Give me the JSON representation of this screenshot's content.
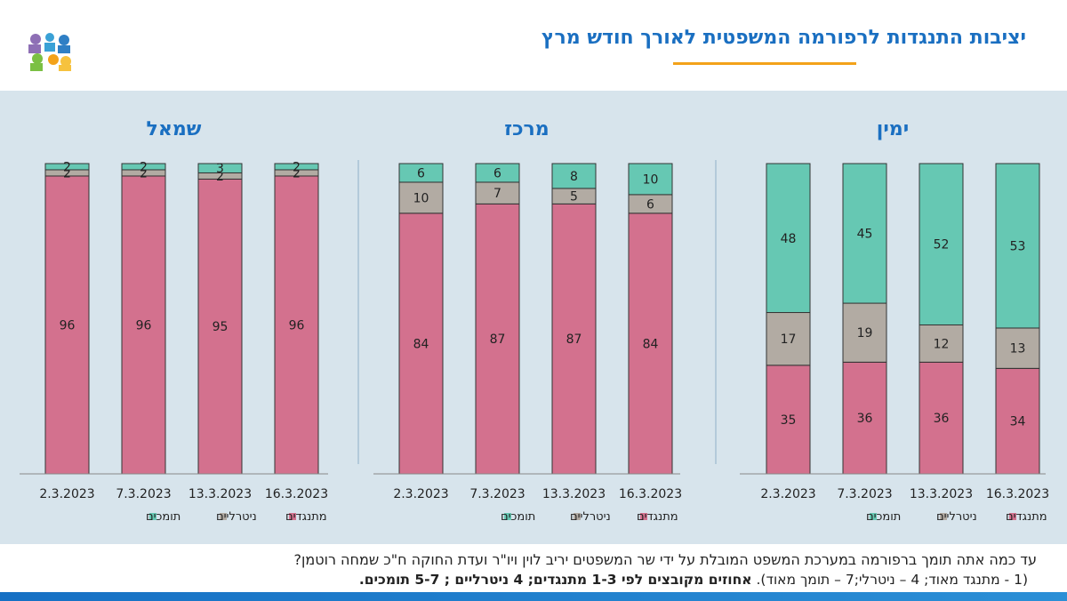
{
  "header": {
    "title": "יציבות התנגדות לרפורמה המשפטית לאורך חודש מרץ",
    "logo": "colored-figures-logo"
  },
  "colors": {
    "opposed": "#d3718e",
    "neutral": "#b2aba3",
    "support": "#66c8b3",
    "title": "#1a6fc1",
    "accent": "#f3a21a",
    "panel": "#d7e4ec"
  },
  "chart_data": [
    {
      "type": "bar",
      "stacked": true,
      "title": "ימין",
      "categories": [
        "2.3.2023",
        "7.3.2023",
        "13.3.2023",
        "16.3.2023"
      ],
      "series": [
        {
          "name": "מתנגדים",
          "values": [
            35,
            36,
            36,
            34
          ]
        },
        {
          "name": "ניטרליים",
          "values": [
            17,
            19,
            12,
            13
          ]
        },
        {
          "name": "תומכים",
          "values": [
            48,
            45,
            52,
            53
          ]
        }
      ],
      "ylim": [
        0,
        100
      ],
      "legend": "bottom"
    },
    {
      "type": "bar",
      "stacked": true,
      "title": "מרכז",
      "categories": [
        "2.3.2023",
        "7.3.2023",
        "13.3.2023",
        "16.3.2023"
      ],
      "series": [
        {
          "name": "מתנגדים",
          "values": [
            84,
            87,
            87,
            84
          ]
        },
        {
          "name": "ניטרליים",
          "values": [
            10,
            7,
            5,
            6
          ]
        },
        {
          "name": "תומכים",
          "values": [
            6,
            6,
            8,
            10
          ]
        }
      ],
      "ylim": [
        0,
        100
      ],
      "legend": "bottom"
    },
    {
      "type": "bar",
      "stacked": true,
      "title": "שמאל",
      "categories": [
        "2.3.2023",
        "7.3.2023",
        "13.3.2023",
        "16.3.2023"
      ],
      "series": [
        {
          "name": "מתנגדים",
          "values": [
            96,
            96,
            95,
            96
          ]
        },
        {
          "name": "ניטרליים",
          "values": [
            2,
            2,
            2,
            2
          ]
        },
        {
          "name": "תומכים",
          "values": [
            2,
            2,
            3,
            2
          ]
        }
      ],
      "ylim": [
        0,
        100
      ],
      "legend": "bottom"
    }
  ],
  "footer": {
    "question": "עד כמה אתה תומך ברפורמה במערכת המשפט המובלת על ידי שר המשפטים יריב לוין ויו\"ר ועדת החוקה ח\"כ שמחה רוטמן?",
    "scale_plain": "(1 - מתנגד מאוד; 4 – ניטרלי;7 – תומך מאוד). ",
    "scale_bold": "אחוזים מקובצים לפי 1-3 מתנגדים; 4 ניטרליים ; 5-7 תומכים."
  }
}
